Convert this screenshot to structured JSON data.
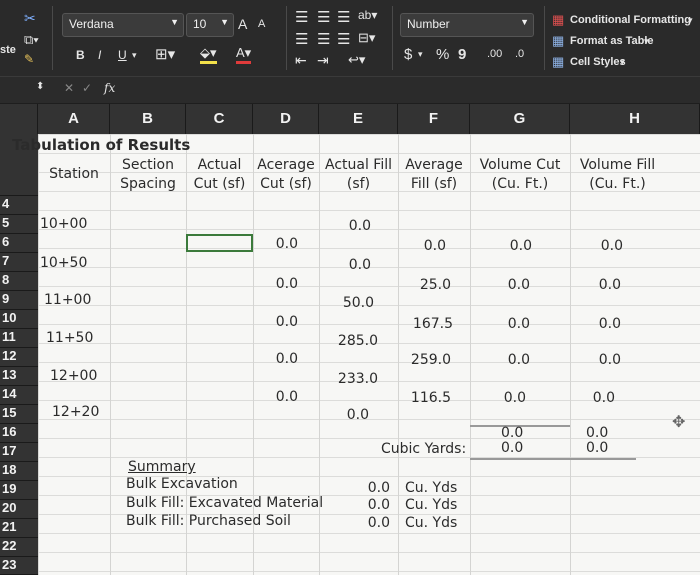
{
  "ribbon": {
    "paste_label": "ste",
    "font_name": "Verdana",
    "font_size": "10",
    "grow_font": "A",
    "shrink_font": "A",
    "bold": "B",
    "italic": "I",
    "underline": "U",
    "number_format": "Number",
    "currency": "$",
    "percent": "%",
    "comma": "9",
    "increase_decimal": ".00",
    "decrease_decimal": ".0",
    "conditional_formatting": "Conditional Formatting",
    "format_as_table": "Format as Table",
    "cell_styles": "Cell Styles"
  },
  "formula_bar": {
    "fx": "fx",
    "content": ""
  },
  "columns": [
    "A",
    "B",
    "C",
    "D",
    "E",
    "F",
    "G",
    "H"
  ],
  "rows": [
    "4",
    "5",
    "6",
    "7",
    "8",
    "9",
    "10",
    "11",
    "12",
    "13",
    "14",
    "15",
    "16",
    "17",
    "18",
    "19",
    "20",
    "21",
    "22",
    "23"
  ],
  "sheet": {
    "title": "Tabulation of Results",
    "headers": {
      "station": "Station",
      "section_spacing_1": "Section",
      "section_spacing_2": "Spacing",
      "actual_cut_1": "Actual",
      "actual_cut_2": "Cut (sf)",
      "avg_cut_1": "Acerage",
      "avg_cut_2": "Cut (sf)",
      "actual_fill_1": "Actual Fill",
      "actual_fill_2": "(sf)",
      "avg_fill_1": "Average",
      "avg_fill_2": "Fill (sf)",
      "vol_cut_1": "Volume Cut",
      "vol_cut_2": "(Cu. Ft.)",
      "vol_fill_1": "Volume Fill",
      "vol_fill_2": "(Cu. Ft.)"
    },
    "stations": [
      "10+00",
      "10+50",
      "11+00",
      "11+50",
      "12+00",
      "12+20"
    ],
    "actual_fill": [
      "0.0",
      "0.0",
      "50.0",
      "285.0",
      "233.0",
      "0.0"
    ],
    "avg_cut": [
      "0.0",
      "0.0",
      "0.0",
      "0.0",
      "0.0"
    ],
    "avg_fill": [
      "0.0",
      "25.0",
      "167.5",
      "259.0",
      "116.5"
    ],
    "vol_cut": [
      "0.0",
      "0.0",
      "0.0",
      "0.0",
      "0.0"
    ],
    "vol_fill": [
      "0.0",
      "0.0",
      "0.0",
      "0.0",
      "0.0"
    ],
    "totals": {
      "vol_cut_sum": "0.0",
      "vol_fill_sum": "0.0",
      "label": "Cubic Yards:",
      "vol_cut_cy": "0.0",
      "vol_fill_cy": "0.0"
    },
    "summary": {
      "title": "Summary",
      "rows": [
        {
          "label": "Bulk Excavation",
          "value": "0.0",
          "unit": "Cu. Yds"
        },
        {
          "label": "Bulk Fill: Excavated Material",
          "value": "0.0",
          "unit": "Cu. Yds"
        },
        {
          "label": "Bulk Fill: Purchased Soil",
          "value": "0.0",
          "unit": "Cu. Yds"
        }
      ]
    }
  }
}
